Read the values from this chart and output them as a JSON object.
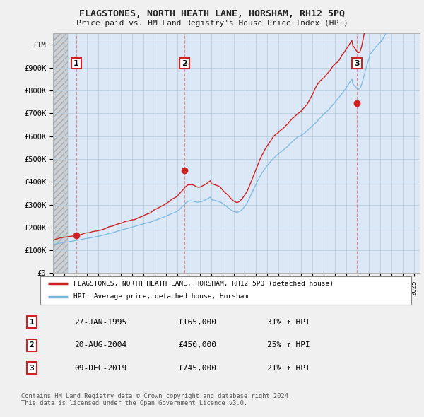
{
  "title": "FLAGSTONES, NORTH HEATH LANE, HORSHAM, RH12 5PQ",
  "subtitle": "Price paid vs. HM Land Registry's House Price Index (HPI)",
  "ylabel_ticks": [
    "£0",
    "£100K",
    "£200K",
    "£300K",
    "£400K",
    "£500K",
    "£600K",
    "£700K",
    "£800K",
    "£900K",
    "£1M"
  ],
  "ytick_values": [
    0,
    100000,
    200000,
    300000,
    400000,
    500000,
    600000,
    700000,
    800000,
    900000,
    1000000
  ],
  "ylim": [
    0,
    1050000
  ],
  "xlim_start": 1993.0,
  "xlim_end": 2025.5,
  "hpi_color": "#7ab8e0",
  "price_color": "#cc2222",
  "background_color": "#f0f0f0",
  "plot_bg_color": "#dce8f5",
  "grid_color": "#b8cfe0",
  "sale_points": [
    {
      "year": 1995.07,
      "price": 165000,
      "label": "1"
    },
    {
      "year": 2004.64,
      "price": 450000,
      "label": "2"
    },
    {
      "year": 2019.93,
      "price": 745000,
      "label": "3"
    }
  ],
  "vline_color": "#dd8888",
  "legend_price_label": "FLAGSTONES, NORTH HEATH LANE, HORSHAM, RH12 5PQ (detached house)",
  "legend_hpi_label": "HPI: Average price, detached house, Horsham",
  "table_rows": [
    {
      "num": "1",
      "date": "27-JAN-1995",
      "price": "£165,000",
      "pct": "31% ↑ HPI"
    },
    {
      "num": "2",
      "date": "20-AUG-2004",
      "price": "£450,000",
      "pct": "25% ↑ HPI"
    },
    {
      "num": "3",
      "date": "09-DEC-2019",
      "price": "£745,000",
      "pct": "21% ↑ HPI"
    }
  ],
  "footnote": "Contains HM Land Registry data © Crown copyright and database right 2024.\nThis data is licensed under the Open Government Licence v3.0.",
  "hatch_color": "#c8c8c8",
  "hatch_end_year": 1994.3
}
